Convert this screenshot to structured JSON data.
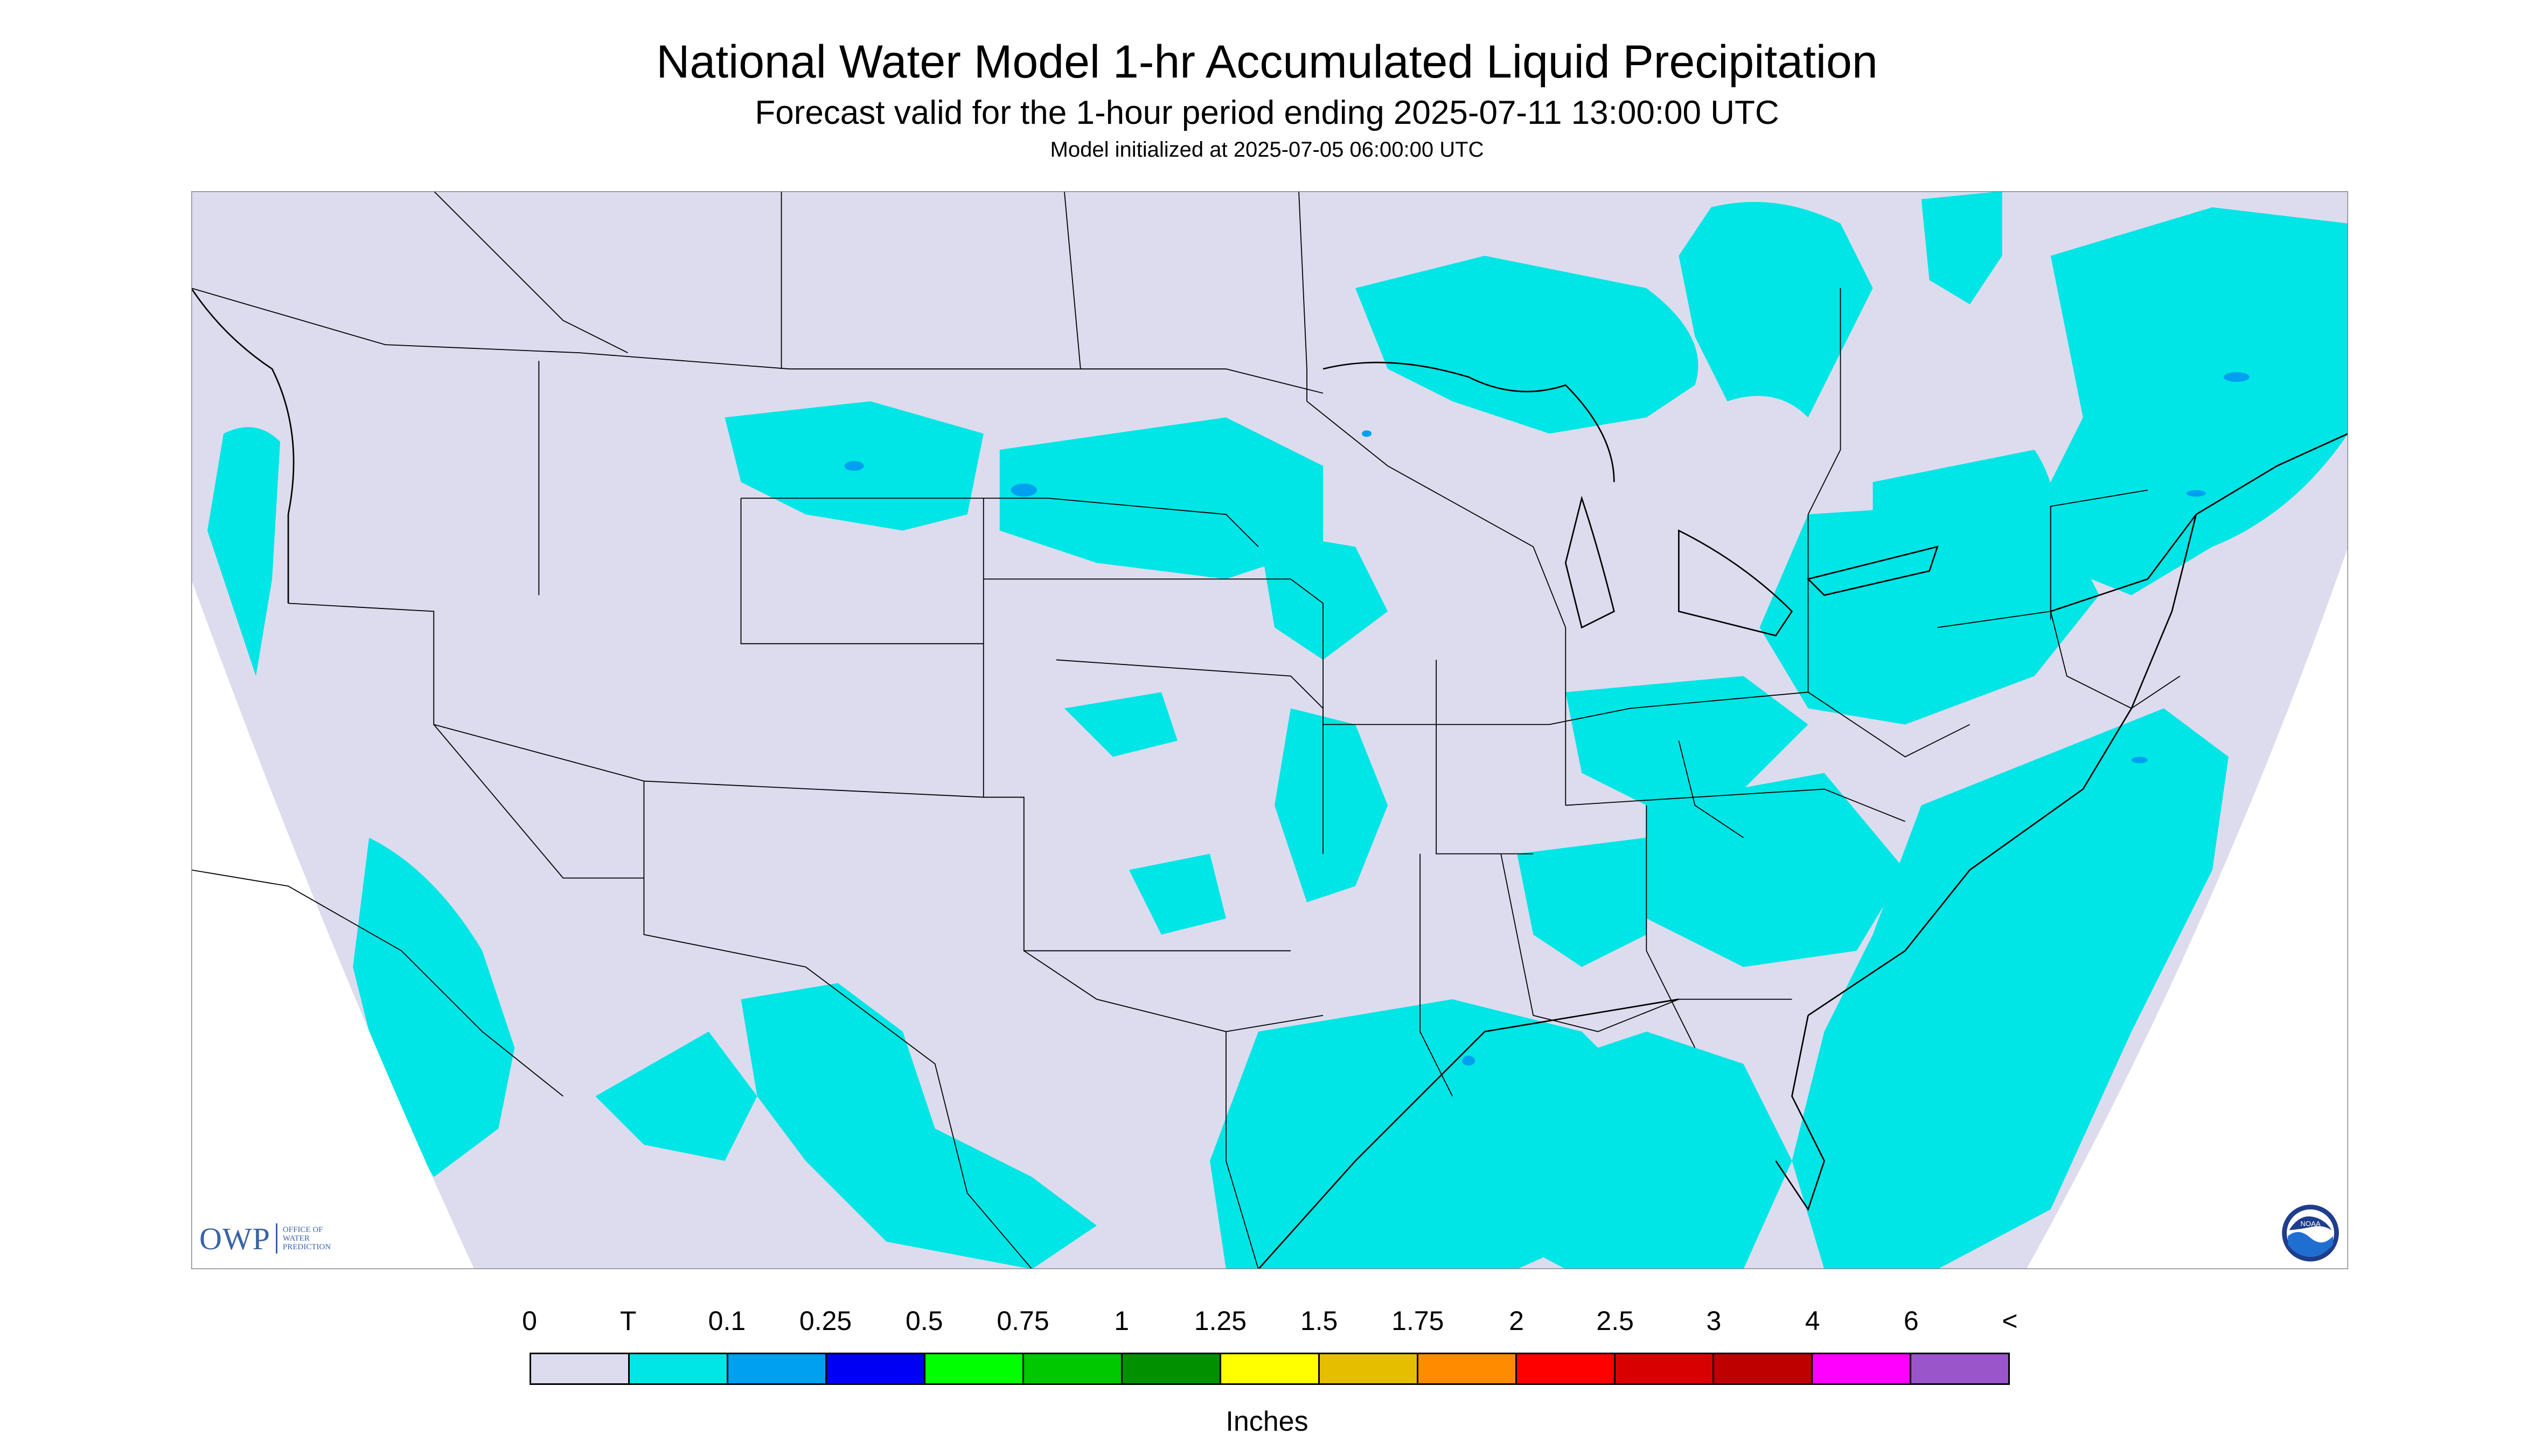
{
  "header": {
    "title": "National Water Model 1-hr Accumulated Liquid Precipitation",
    "subtitle": "Forecast valid for the 1-hour period ending 2025-07-11 13:00:00 UTC",
    "init": "Model initialized at 2025-07-05 06:00:00 UTC"
  },
  "map": {
    "region": "CONUS Lambert projection",
    "background_color": "#dcdcee",
    "outside_color": "#ffffff",
    "dominant_precip_color": "#00e5e5"
  },
  "legend": {
    "labels": [
      "0",
      "T",
      "0.1",
      "0.25",
      "0.5",
      "0.75",
      "1",
      "1.25",
      "1.5",
      "1.75",
      "2",
      "2.5",
      "3",
      "4",
      "6",
      "<"
    ],
    "colors": [
      "#dcdcee",
      "#00e5e5",
      "#00a0f0",
      "#0000f5",
      "#00ff00",
      "#00c800",
      "#009000",
      "#ffff00",
      "#e6be00",
      "#ff8c00",
      "#ff0000",
      "#d80000",
      "#be0000",
      "#ff00ff",
      "#9955c9"
    ],
    "units": "Inches"
  },
  "logos": {
    "owp_mark": "OWP",
    "owp_text": [
      "OFFICE OF",
      "WATER",
      "PREDICTION"
    ],
    "noaa_text": "NOAA",
    "noaa_icon": "noaa-logo-icon"
  }
}
